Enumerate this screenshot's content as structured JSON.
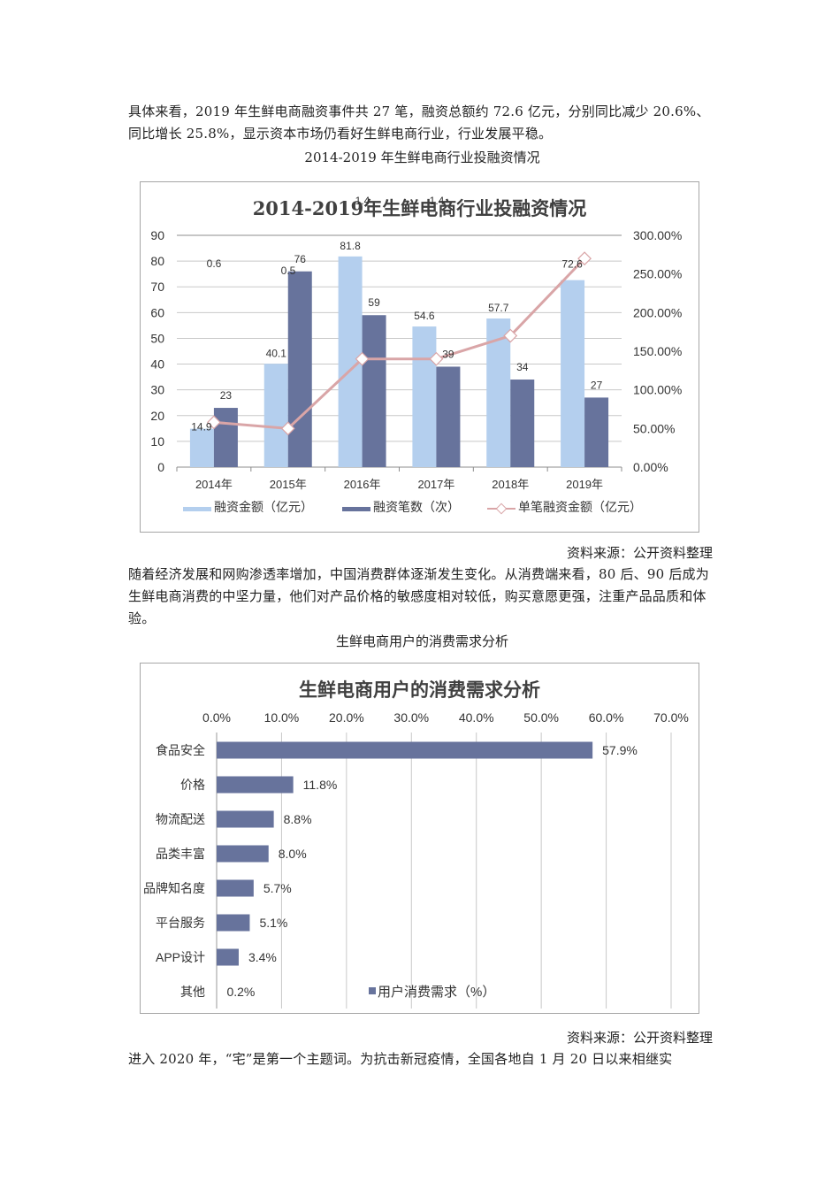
{
  "paragraphs": {
    "p1": "具体来看，2019 年生鲜电商融资事件共 27 笔，融资总额约 72.6 亿元，分别同比减少 20.6%、同比增长 25.8%，显示资本市场仍看好生鲜电商行业，行业发展平稳。",
    "p2": "随着经济发展和网购渗透率增加，中国消费群体逐渐发生变化。从消费端来看，80 后、90 后成为生鲜电商消费的中坚力量，他们对产品价格的敏感度相对较低，购买意愿更强，注重产品品质和体验。",
    "p3": "进入 2020 年，“宅”是第一个主题词。为抗击新冠疫情，全国各地自 1 月 20 日以来相继实"
  },
  "captions": {
    "chart1": "2014-2019 年生鲜电商行业投融资情况",
    "chart2": "生鲜电商用户的消费需求分析"
  },
  "sources": {
    "chart1": "资料来源：公开资料整理",
    "chart2": "资料来源：公开资料整理"
  },
  "colors": {
    "light_bar": "#b4cfee",
    "dark_bar": "#67739c",
    "line": "#d9a5a7",
    "grid": "#c8c8c8"
  },
  "chart_data": [
    {
      "type": "bar",
      "title": "2014-2019年生鲜电商行业投融资情况",
      "categories": [
        "2014年",
        "2015年",
        "2016年",
        "2017年",
        "2018年",
        "2019年"
      ],
      "series": [
        {
          "name": "融资金额（亿元）",
          "type": "bar",
          "axis": "left",
          "values": [
            14.9,
            40.1,
            81.8,
            54.6,
            57.7,
            72.6
          ]
        },
        {
          "name": "融资笔数（次）",
          "type": "bar",
          "axis": "left",
          "values": [
            23,
            76,
            59,
            39,
            34,
            27
          ]
        },
        {
          "name": "单笔融资金额（亿元）",
          "type": "line",
          "axis": "right",
          "values": [
            0.6,
            0.5,
            1.4,
            1.4,
            1.7,
            2.7
          ],
          "plotted_percent_approx": [
            58,
            50,
            140,
            140,
            170,
            270
          ]
        }
      ],
      "left_axis": {
        "ticks": [
          "0",
          "10",
          "20",
          "30",
          "40",
          "50",
          "60",
          "70",
          "80",
          "90"
        ],
        "ylim": [
          0,
          90
        ]
      },
      "right_axis": {
        "ticks": [
          "0.00%",
          "50.00%",
          "100.00%",
          "150.00%",
          "200.00%",
          "250.00%",
          "300.00%"
        ],
        "ylim": [
          0,
          300
        ]
      },
      "legend_position": "bottom",
      "grid": true
    },
    {
      "type": "bar",
      "orientation": "horizontal",
      "title": "生鲜电商用户的消费需求分析",
      "categories": [
        "食品安全",
        "价格",
        "物流配送",
        "品类丰富",
        "品牌知名度",
        "平台服务",
        "APP设计",
        "其他"
      ],
      "series": [
        {
          "name": "用户消费需求（%）",
          "values": [
            57.9,
            11.8,
            8.8,
            8.0,
            5.7,
            5.1,
            3.4,
            0.2
          ]
        }
      ],
      "value_labels": [
        "57.9%",
        "11.8%",
        "8.8%",
        "8.0%",
        "5.7%",
        "5.1%",
        "3.4%",
        "0.2%"
      ],
      "x_axis": {
        "ticks": [
          "0.0%",
          "10.0%",
          "20.0%",
          "30.0%",
          "40.0%",
          "50.0%",
          "60.0%",
          "70.0%"
        ],
        "xlim": [
          0,
          70
        ],
        "position": "top"
      },
      "legend_position": "bottom-inside",
      "grid": true
    }
  ]
}
